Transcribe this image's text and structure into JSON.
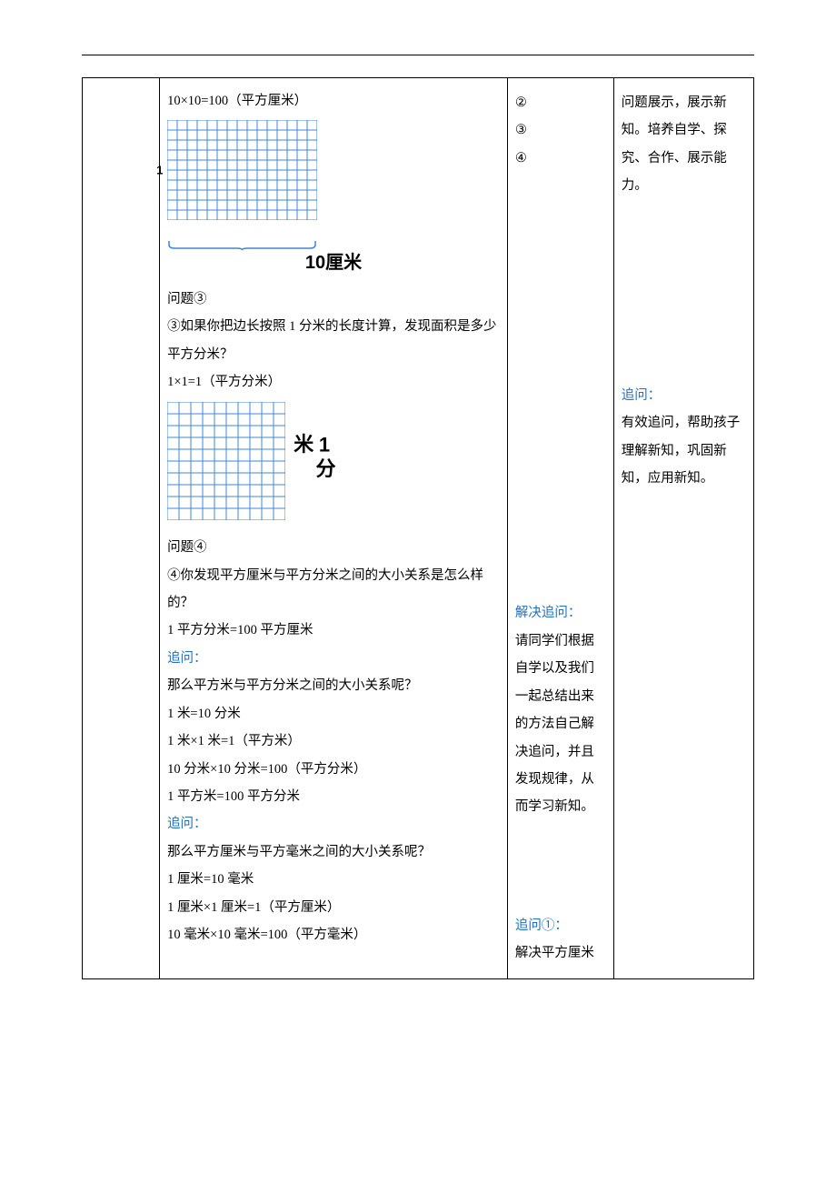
{
  "topRuleColor": "#000000",
  "main": {
    "line1": "10×10=100（平方厘米）",
    "grid1": {
      "cols": 15,
      "rows": 10,
      "cell": 11,
      "lineColor": "#3f87d6",
      "leftTick": "1",
      "captionBottom": "10厘米"
    },
    "q3_label": "问题③",
    "q3_text": "③如果你把边长按照 1 分米的长度计算，发现面积是多少平方分米？",
    "q3_calc": "1×1=1（平方分米）",
    "grid2": {
      "cols": 10,
      "rows": 10,
      "cell": 13,
      "lineColor": "#3f87d6",
      "captionRight": "1分米"
    },
    "q4_label": "问题④",
    "q4_text": "④你发现平方厘米与平方分米之间的大小关系是怎么样的？",
    "q4_calc": "1 平方分米=100 平方厘米",
    "follow1_label": "追问：",
    "follow1_text": "那么平方米与平方分米之间的大小关系呢？",
    "follow1_c1": "1 米=10 分米",
    "follow1_c2": "1 米×1 米=1（平方米）",
    "follow1_c3": "10 分米×10 分米=100（平方分米）",
    "follow1_c4": "1 平方米=100 平方分米",
    "follow2_label": "追问：",
    "follow2_text": "那么平方厘米与平方毫米之间的大小关系呢？",
    "follow2_c1": "1 厘米=10 毫米",
    "follow2_c2": "1 厘米×1 厘米=1（平方厘米）",
    "follow2_c3": "10 毫米×10 毫米=100（平方毫米）"
  },
  "side1": {
    "n2": "②",
    "n3": "③",
    "n4": "④",
    "solve_label": "解决追问：",
    "solve_text": "请同学们根据自学以及我们一起总结出来的方法自己解决追问，并且发现规律，从而学习新知。",
    "follow_b1_label": "追问①：",
    "follow_b1_text": "解决平方厘米"
  },
  "side2": {
    "top_text": "问题展示，展示新知。培养自学、探究、合作、展示能力。",
    "follow_label": "追问：",
    "follow_text": "有效追问，帮助孩子理解新知，巩固新知，应用新知。"
  },
  "colors": {
    "blue": "#1f6fc1",
    "text": "#000000",
    "grid": "#3f87d6"
  }
}
